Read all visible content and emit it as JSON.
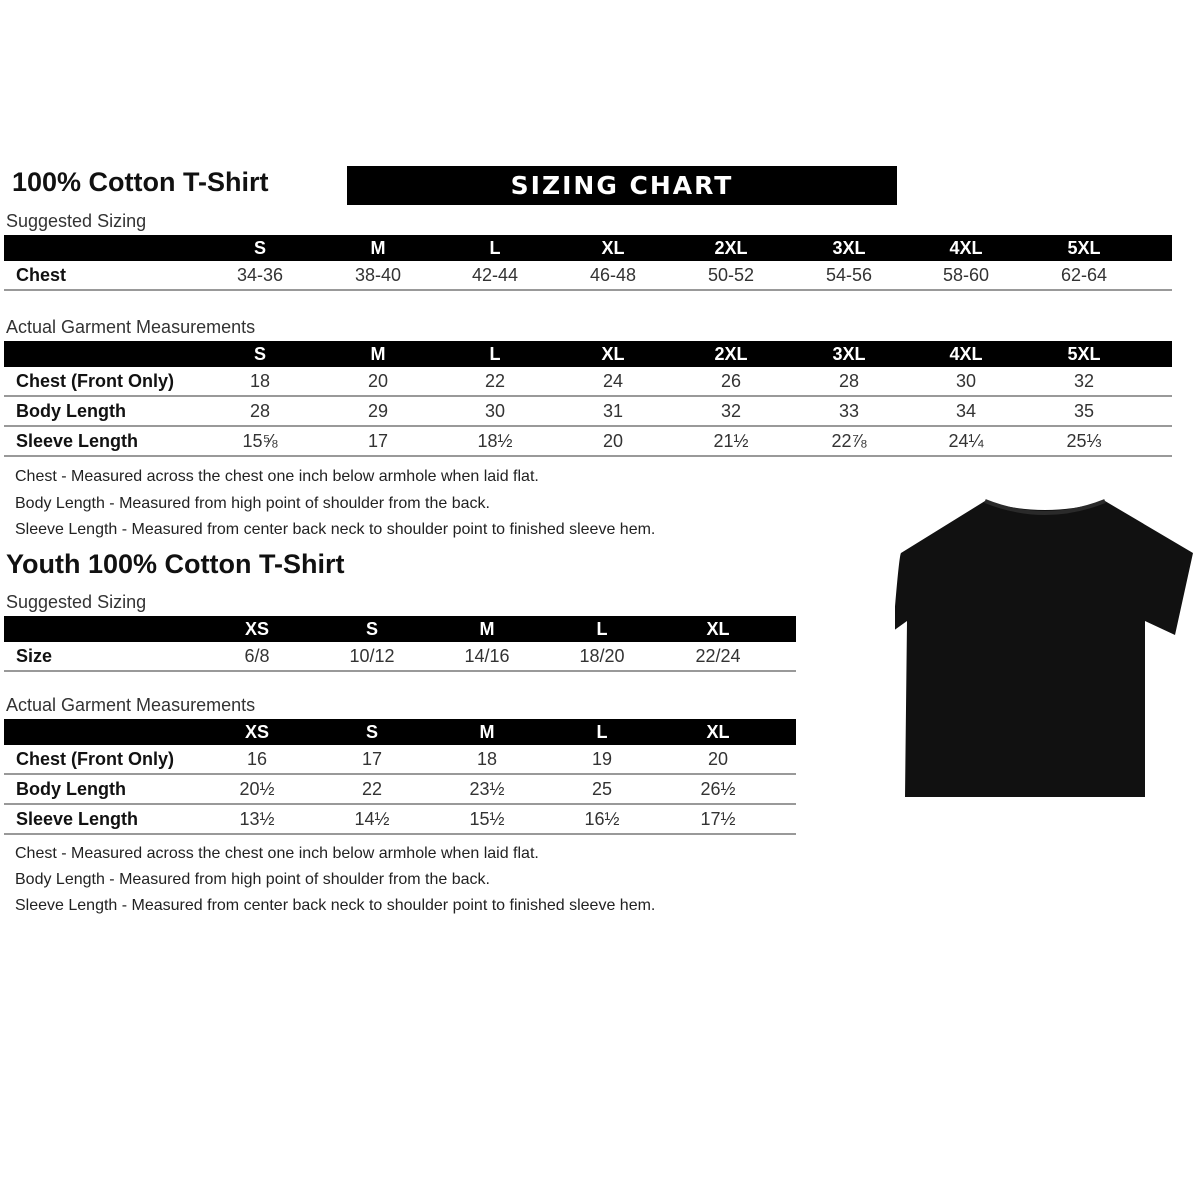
{
  "adult": {
    "title": "100% Cotton T-Shirt",
    "banner": "SIZING CHART",
    "suggested_label": "Suggested Sizing",
    "sizes": [
      "S",
      "M",
      "L",
      "XL",
      "2XL",
      "3XL",
      "4XL",
      "5XL"
    ],
    "suggested_rows": [
      {
        "label": "Chest",
        "values": [
          "34-36",
          "38-40",
          "42-44",
          "46-48",
          "50-52",
          "54-56",
          "58-60",
          "62-64"
        ]
      }
    ],
    "actual_label": "Actual Garment Measurements",
    "actual_rows": [
      {
        "label": "Chest (Front Only)",
        "values": [
          "18",
          "20",
          "22",
          "24",
          "26",
          "28",
          "30",
          "32"
        ]
      },
      {
        "label": "Body Length",
        "values": [
          "28",
          "29",
          "30",
          "31",
          "32",
          "33",
          "34",
          "35"
        ]
      },
      {
        "label": "Sleeve Length",
        "values": [
          "15⅝",
          "17",
          "18½",
          "20",
          "21½",
          "22⅞",
          "24¼",
          "25⅓"
        ]
      }
    ],
    "notes": [
      "Chest - Measured across the chest one inch below armhole when laid flat.",
      "Body Length - Measured from high point of shoulder from the back.",
      "Sleeve Length - Measured from center back neck to shoulder point to finished sleeve hem."
    ]
  },
  "youth": {
    "title": "Youth 100% Cotton T-Shirt",
    "suggested_label": "Suggested Sizing",
    "sizes": [
      "XS",
      "S",
      "M",
      "L",
      "XL"
    ],
    "suggested_rows": [
      {
        "label": "Size",
        "values": [
          "6/8",
          "10/12",
          "14/16",
          "18/20",
          "22/24"
        ]
      }
    ],
    "actual_label": "Actual Garment Measurements",
    "actual_rows": [
      {
        "label": "Chest (Front Only)",
        "values": [
          "16",
          "17",
          "18",
          "19",
          "20"
        ]
      },
      {
        "label": "Body Length",
        "values": [
          "20½",
          "22",
          "23½",
          "25",
          "26½"
        ]
      },
      {
        "label": "Sleeve Length",
        "values": [
          "13½",
          "14½",
          "15½",
          "16½",
          "17½"
        ]
      }
    ],
    "notes": [
      "Chest - Measured across the chest one inch below armhole when laid flat.",
      "Body Length - Measured from high point of shoulder from the back.",
      "Sleeve Length - Measured from center back neck to shoulder point to finished sleeve hem."
    ]
  },
  "image": {
    "icon": "black-tshirt",
    "color": "#111111"
  }
}
